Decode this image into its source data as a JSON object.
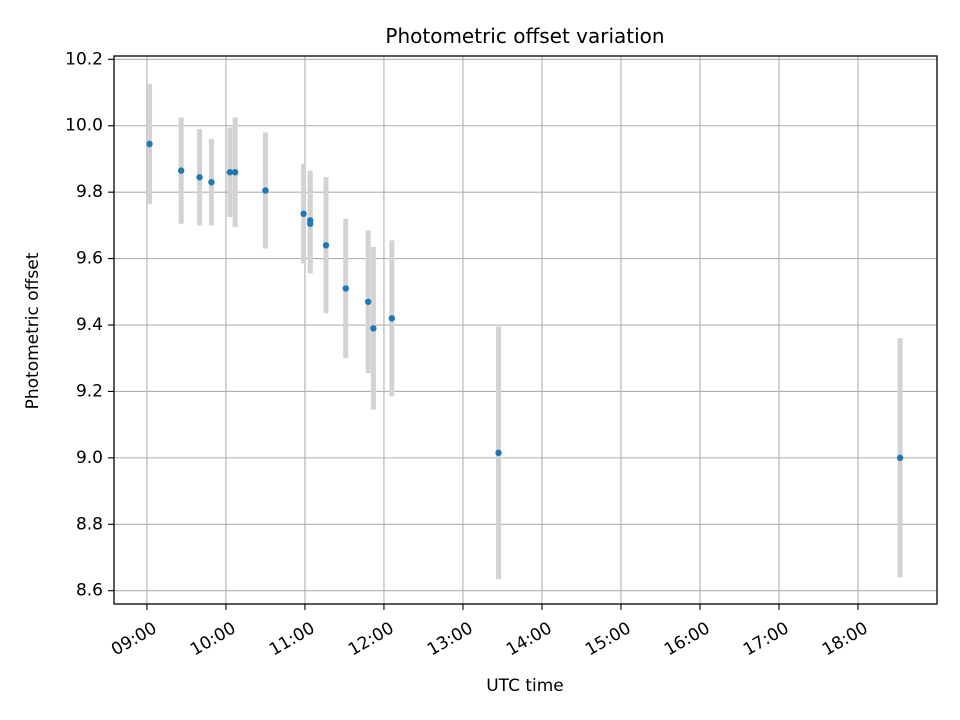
{
  "chart_data": {
    "type": "scatter",
    "title": "Photometric offset variation",
    "xlabel": "UTC time",
    "ylabel": "Photometric offset",
    "x_unit": "time of day (UTC)",
    "xlim": [
      "08:35",
      "19:00"
    ],
    "ylim": [
      8.56,
      10.21
    ],
    "x_ticks": [
      "09:00",
      "10:00",
      "11:00",
      "12:00",
      "13:00",
      "14:00",
      "15:00",
      "16:00",
      "17:00",
      "18:00"
    ],
    "y_ticks": [
      "8.6",
      "8.8",
      "9.0",
      "9.2",
      "9.4",
      "9.6",
      "9.8",
      "10.0",
      "10.2"
    ],
    "grid": true,
    "x_tick_rotation_deg": 30,
    "colors": {
      "point": "#1f77b4",
      "errorbar": "#d3d3d3",
      "grid": "#b0b0b0"
    },
    "points": [
      {
        "t": "09:02",
        "y": 9.945,
        "err": 0.18
      },
      {
        "t": "09:26",
        "y": 9.865,
        "err": 0.16
      },
      {
        "t": "09:40",
        "y": 9.845,
        "err": 0.145
      },
      {
        "t": "09:49",
        "y": 9.83,
        "err": 0.13
      },
      {
        "t": "10:03",
        "y": 9.86,
        "err": 0.135
      },
      {
        "t": "10:07",
        "y": 9.86,
        "err": 0.165
      },
      {
        "t": "10:30",
        "y": 9.805,
        "err": 0.175
      },
      {
        "t": "10:59",
        "y": 9.735,
        "err": 0.15
      },
      {
        "t": "11:04",
        "y": 9.715,
        "err": 0.15
      },
      {
        "t": "11:04",
        "y": 9.705,
        "err": 0.15
      },
      {
        "t": "11:16",
        "y": 9.64,
        "err": 0.205
      },
      {
        "t": "11:31",
        "y": 9.51,
        "err": 0.21
      },
      {
        "t": "11:48",
        "y": 9.47,
        "err": 0.215
      },
      {
        "t": "11:52",
        "y": 9.39,
        "err": 0.245
      },
      {
        "t": "12:06",
        "y": 9.42,
        "err": 0.235
      },
      {
        "t": "13:27",
        "y": 9.015,
        "err": 0.38
      },
      {
        "t": "18:32",
        "y": 9.0,
        "err": 0.36
      }
    ]
  }
}
